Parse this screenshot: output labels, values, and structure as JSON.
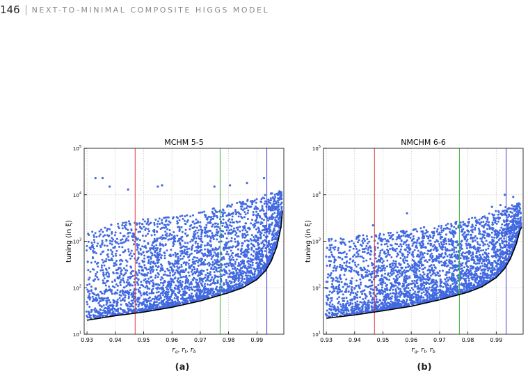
{
  "header": {
    "page_number": "146",
    "running_title": "NEXT-TO-MINIMAL COMPOSITE HIGGS MODEL"
  },
  "colors": {
    "points": "#4169e1",
    "red_line": "#e03c3c",
    "green_line": "#3cb33c",
    "blue_line": "#3c3cd2",
    "boundary": "#000000"
  },
  "chart_data": [
    {
      "type": "scatter",
      "title": "MCHM 5-5",
      "xlabel": "r_g, r_t, r_b",
      "ylabel": "tuning (in ξ)",
      "xlim": [
        0.929,
        0.9995
      ],
      "ylim": [
        10,
        100000
      ],
      "yscale": "log",
      "grid": true,
      "x_ticks": [
        "0.93",
        "0.94",
        "0.95",
        "0.96",
        "0.97",
        "0.98",
        "0.99"
      ],
      "y_ticks": [
        {
          "base": "10",
          "exp": "1"
        },
        {
          "base": "10",
          "exp": "2"
        },
        {
          "base": "10",
          "exp": "3"
        },
        {
          "base": "10",
          "exp": "4"
        },
        {
          "base": "10",
          "exp": "5"
        }
      ],
      "vertical_lines": [
        {
          "x": 0.947,
          "color": "red"
        },
        {
          "x": 0.977,
          "color": "green"
        },
        {
          "x": 0.9935,
          "color": "blue"
        }
      ],
      "lower_boundary": [
        [
          0.93,
          20
        ],
        [
          0.94,
          25
        ],
        [
          0.95,
          30
        ],
        [
          0.96,
          38
        ],
        [
          0.97,
          52
        ],
        [
          0.98,
          78
        ],
        [
          0.985,
          100
        ],
        [
          0.99,
          150
        ],
        [
          0.993,
          230
        ],
        [
          0.995,
          370
        ],
        [
          0.997,
          750
        ],
        [
          0.9985,
          2000
        ],
        [
          0.999,
          4500
        ]
      ],
      "scatter_band": {
        "upper_envelope": [
          [
            0.93,
            1500
          ],
          [
            0.94,
            2500
          ],
          [
            0.95,
            3000
          ],
          [
            0.96,
            3500
          ],
          [
            0.97,
            4500
          ],
          [
            0.98,
            6000
          ],
          [
            0.99,
            9000
          ],
          [
            0.995,
            11000
          ],
          [
            0.999,
            13000
          ]
        ],
        "outliers": [
          [
            0.933,
            23000
          ],
          [
            0.9355,
            23000
          ],
          [
            0.938,
            15000
          ],
          [
            0.9445,
            13000
          ],
          [
            0.955,
            15000
          ],
          [
            0.9565,
            16000
          ],
          [
            0.975,
            15000
          ],
          [
            0.9805,
            16000
          ],
          [
            0.9865,
            18000
          ],
          [
            0.9925,
            23000
          ]
        ]
      }
    },
    {
      "type": "scatter",
      "title": "NMCHM 6-6",
      "xlabel": "r_g, r_t, r_b",
      "ylabel": "tuning (in ξ)",
      "xlim": [
        0.929,
        0.9995
      ],
      "ylim": [
        10,
        100000
      ],
      "yscale": "log",
      "grid": true,
      "x_ticks": [
        "0.93",
        "0.94",
        "0.95",
        "0.96",
        "0.97",
        "0.98",
        "0.99"
      ],
      "y_ticks": [
        {
          "base": "10",
          "exp": "1"
        },
        {
          "base": "10",
          "exp": "2"
        },
        {
          "base": "10",
          "exp": "3"
        },
        {
          "base": "10",
          "exp": "4"
        },
        {
          "base": "10",
          "exp": "5"
        }
      ],
      "vertical_lines": [
        {
          "x": 0.947,
          "color": "red"
        },
        {
          "x": 0.977,
          "color": "green"
        },
        {
          "x": 0.9935,
          "color": "blue"
        }
      ],
      "lower_boundary": [
        [
          0.93,
          22
        ],
        [
          0.94,
          26
        ],
        [
          0.95,
          32
        ],
        [
          0.96,
          40
        ],
        [
          0.97,
          55
        ],
        [
          0.98,
          80
        ],
        [
          0.985,
          105
        ],
        [
          0.99,
          165
        ],
        [
          0.993,
          260
        ],
        [
          0.995,
          420
        ],
        [
          0.997,
          850
        ],
        [
          0.9985,
          1800
        ],
        [
          0.999,
          2000
        ]
      ],
      "scatter_band": {
        "upper_envelope": [
          [
            0.93,
            1100
          ],
          [
            0.94,
            1300
          ],
          [
            0.95,
            1500
          ],
          [
            0.96,
            1800
          ],
          [
            0.97,
            2200
          ],
          [
            0.98,
            3000
          ],
          [
            0.99,
            4500
          ],
          [
            0.995,
            6000
          ],
          [
            0.999,
            7000
          ]
        ],
        "outliers": [
          [
            0.9465,
            2200
          ],
          [
            0.9585,
            4000
          ],
          [
            0.9645,
            2000
          ],
          [
            0.9825,
            3200
          ],
          [
            0.9885,
            5500
          ],
          [
            0.9915,
            6000
          ],
          [
            0.996,
            9000
          ],
          [
            0.993,
            10000
          ]
        ]
      }
    }
  ],
  "captions": {
    "a": "(a)",
    "b": "(b)"
  }
}
